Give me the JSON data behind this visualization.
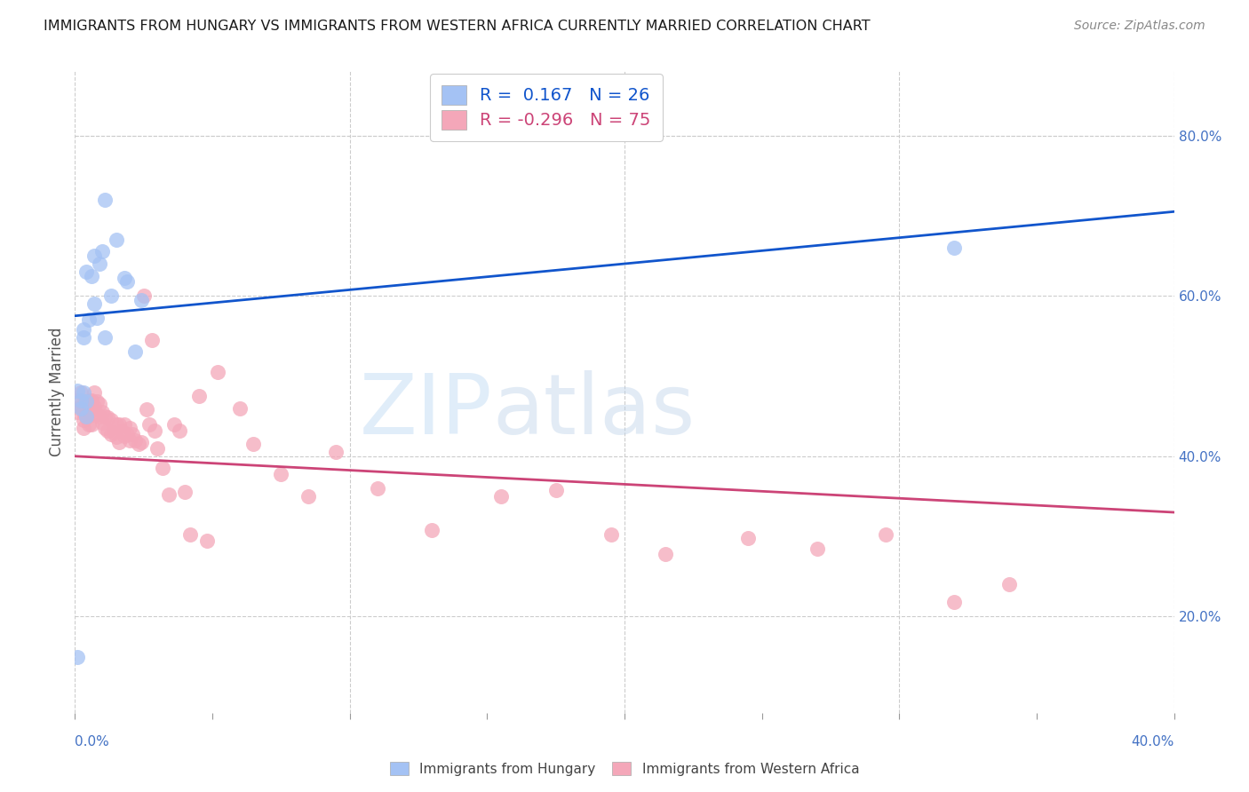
{
  "title": "IMMIGRANTS FROM HUNGARY VS IMMIGRANTS FROM WESTERN AFRICA CURRENTLY MARRIED CORRELATION CHART",
  "source": "Source: ZipAtlas.com",
  "ylabel": "Currently Married",
  "right_yticks": [
    0.2,
    0.4,
    0.6,
    0.8
  ],
  "right_yticklabels": [
    "20.0%",
    "40.0%",
    "60.0%",
    "80.0%"
  ],
  "xlim": [
    0.0,
    0.4
  ],
  "ylim": [
    0.08,
    0.88
  ],
  "xtick_left_label": "0.0%",
  "xtick_right_label": "40.0%",
  "blue_color": "#a4c2f4",
  "pink_color": "#f4a7b9",
  "blue_line_color": "#1155cc",
  "pink_line_color": "#cc4477",
  "watermark_zip": "ZIP",
  "watermark_atlas": "atlas",
  "legend_R_blue": " 0.167",
  "legend_N_blue": "26",
  "legend_R_pink": "-0.296",
  "legend_N_pink": "75",
  "legend_label_blue": "Immigrants from Hungary",
  "legend_label_pink": "Immigrants from Western Africa",
  "blue_line_y0": 0.575,
  "blue_line_y1": 0.705,
  "pink_line_y0": 0.4,
  "pink_line_y1": 0.33,
  "blue_x": [
    0.005,
    0.011,
    0.007,
    0.01,
    0.009,
    0.004,
    0.006,
    0.007,
    0.008,
    0.003,
    0.003,
    0.013,
    0.015,
    0.018,
    0.011,
    0.019,
    0.002,
    0.001,
    0.003,
    0.004,
    0.024,
    0.004,
    0.022,
    0.001,
    0.32,
    0.002
  ],
  "blue_y": [
    0.57,
    0.72,
    0.65,
    0.655,
    0.64,
    0.63,
    0.625,
    0.59,
    0.572,
    0.558,
    0.548,
    0.6,
    0.67,
    0.622,
    0.548,
    0.618,
    0.46,
    0.482,
    0.48,
    0.468,
    0.595,
    0.45,
    0.53,
    0.15,
    0.66,
    0.47
  ],
  "pink_x": [
    0.001,
    0.001,
    0.002,
    0.002,
    0.003,
    0.003,
    0.003,
    0.004,
    0.004,
    0.005,
    0.005,
    0.005,
    0.006,
    0.006,
    0.006,
    0.007,
    0.007,
    0.008,
    0.008,
    0.009,
    0.009,
    0.01,
    0.01,
    0.011,
    0.011,
    0.012,
    0.012,
    0.013,
    0.013,
    0.014,
    0.015,
    0.015,
    0.016,
    0.016,
    0.017,
    0.018,
    0.018,
    0.019,
    0.02,
    0.02,
    0.021,
    0.022,
    0.023,
    0.024,
    0.025,
    0.026,
    0.027,
    0.028,
    0.029,
    0.03,
    0.032,
    0.034,
    0.036,
    0.038,
    0.04,
    0.042,
    0.045,
    0.048,
    0.052,
    0.06,
    0.065,
    0.075,
    0.085,
    0.095,
    0.11,
    0.13,
    0.155,
    0.175,
    0.195,
    0.215,
    0.245,
    0.27,
    0.295,
    0.32,
    0.34
  ],
  "pink_y": [
    0.47,
    0.455,
    0.48,
    0.462,
    0.455,
    0.445,
    0.435,
    0.465,
    0.448,
    0.47,
    0.455,
    0.44,
    0.47,
    0.452,
    0.44,
    0.48,
    0.462,
    0.468,
    0.452,
    0.465,
    0.45,
    0.455,
    0.442,
    0.45,
    0.435,
    0.448,
    0.432,
    0.445,
    0.428,
    0.43,
    0.44,
    0.424,
    0.44,
    0.418,
    0.432,
    0.44,
    0.425,
    0.428,
    0.435,
    0.42,
    0.428,
    0.42,
    0.415,
    0.418,
    0.6,
    0.458,
    0.44,
    0.545,
    0.432,
    0.41,
    0.385,
    0.352,
    0.44,
    0.432,
    0.355,
    0.302,
    0.475,
    0.295,
    0.505,
    0.46,
    0.415,
    0.378,
    0.35,
    0.405,
    0.36,
    0.308,
    0.35,
    0.358,
    0.302,
    0.278,
    0.298,
    0.285,
    0.302,
    0.218,
    0.24
  ],
  "grid_color": "#cccccc",
  "background_color": "#ffffff"
}
